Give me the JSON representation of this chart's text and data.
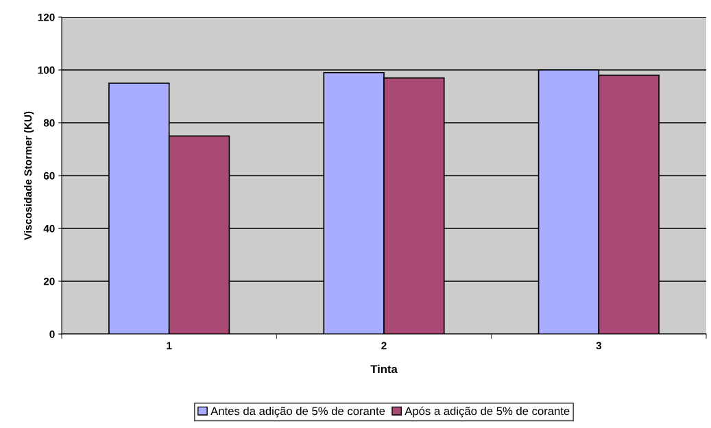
{
  "chart_data": {
    "type": "bar",
    "xlabel": "Tinta",
    "ylabel": "Viscosidade Stormer (KU)",
    "categories": [
      "1",
      "2",
      "3"
    ],
    "series": [
      {
        "name": "Antes da adição de 5% de corante",
        "color": "#a9adff",
        "values": [
          95,
          99,
          100
        ]
      },
      {
        "name": "Após a adição de 5% de corante",
        "color": "#a94a75",
        "values": [
          75,
          97,
          98
        ]
      }
    ],
    "ylim": [
      0,
      120
    ],
    "yticks": [
      0,
      20,
      40,
      60,
      80,
      100,
      120
    ],
    "grid": "y",
    "legend": "bottom"
  }
}
